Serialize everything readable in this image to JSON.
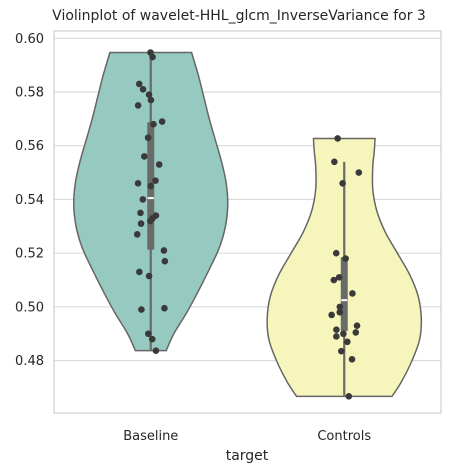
{
  "chart_data": {
    "type": "violin",
    "title": "Violinplot of wavelet-HHL_glcm_InverseVariance for 3",
    "xlabel": "target",
    "ylabel": "",
    "ylim": [
      0.4605,
      0.6027
    ],
    "yticks": [
      0.48,
      0.5,
      0.52,
      0.54,
      0.56,
      0.58,
      0.6
    ],
    "ytick_labels": [
      "0.48",
      "0.50",
      "0.52",
      "0.54",
      "0.56",
      "0.58",
      "0.60"
    ],
    "categories": [
      "Baseline",
      "Controls"
    ],
    "grid": true,
    "colors": {
      "Baseline": "#96cac1",
      "Controls": "#f6f6bc",
      "edge": "#666666",
      "points": "#3a3a3a",
      "box": "#6a6a6a",
      "median": "#ffffff"
    },
    "violins": [
      {
        "category": "Baseline",
        "min": 0.4837,
        "max": 0.5947,
        "q1": 0.5213,
        "median": 0.5405,
        "q3": 0.5687,
        "whisker_low": 0.4837,
        "whisker_high": 0.5947,
        "density": [
          [
            0.4837,
            0.2
          ],
          [
            0.49,
            0.3
          ],
          [
            0.498,
            0.47
          ],
          [
            0.506,
            0.62
          ],
          [
            0.514,
            0.76
          ],
          [
            0.522,
            0.89
          ],
          [
            0.53,
            0.97
          ],
          [
            0.538,
            1.0
          ],
          [
            0.546,
            0.98
          ],
          [
            0.554,
            0.92
          ],
          [
            0.562,
            0.84
          ],
          [
            0.57,
            0.76
          ],
          [
            0.578,
            0.69
          ],
          [
            0.586,
            0.62
          ],
          [
            0.5947,
            0.53
          ]
        ],
        "points": [
          0.5947,
          0.593,
          0.583,
          0.581,
          0.579,
          0.577,
          0.575,
          0.569,
          0.568,
          0.563,
          0.556,
          0.553,
          0.547,
          0.546,
          0.545,
          0.54,
          0.534,
          0.535,
          0.533,
          0.532,
          0.531,
          0.527,
          0.521,
          0.517,
          0.513,
          0.5115,
          0.4995,
          0.499,
          0.49,
          0.488,
          0.4837
        ]
      },
      {
        "category": "Controls",
        "min": 0.4667,
        "max": 0.5627,
        "q1": 0.491,
        "median": 0.5025,
        "q3": 0.5185,
        "whisker_low": 0.4667,
        "whisker_high": 0.554,
        "density": [
          [
            0.4667,
            0.62
          ],
          [
            0.472,
            0.74
          ],
          [
            0.48,
            0.88
          ],
          [
            0.488,
            0.98
          ],
          [
            0.496,
            1.0
          ],
          [
            0.504,
            0.96
          ],
          [
            0.512,
            0.85
          ],
          [
            0.52,
            0.69
          ],
          [
            0.528,
            0.53
          ],
          [
            0.536,
            0.42
          ],
          [
            0.544,
            0.37
          ],
          [
            0.552,
            0.37
          ],
          [
            0.558,
            0.39
          ],
          [
            0.5627,
            0.4
          ]
        ],
        "points": [
          0.5627,
          0.554,
          0.55,
          0.546,
          0.52,
          0.518,
          0.511,
          0.51,
          0.505,
          0.5,
          0.498,
          0.497,
          0.493,
          0.4915,
          0.4905,
          0.49,
          0.489,
          0.487,
          0.4835,
          0.4805,
          0.4667
        ]
      }
    ]
  }
}
